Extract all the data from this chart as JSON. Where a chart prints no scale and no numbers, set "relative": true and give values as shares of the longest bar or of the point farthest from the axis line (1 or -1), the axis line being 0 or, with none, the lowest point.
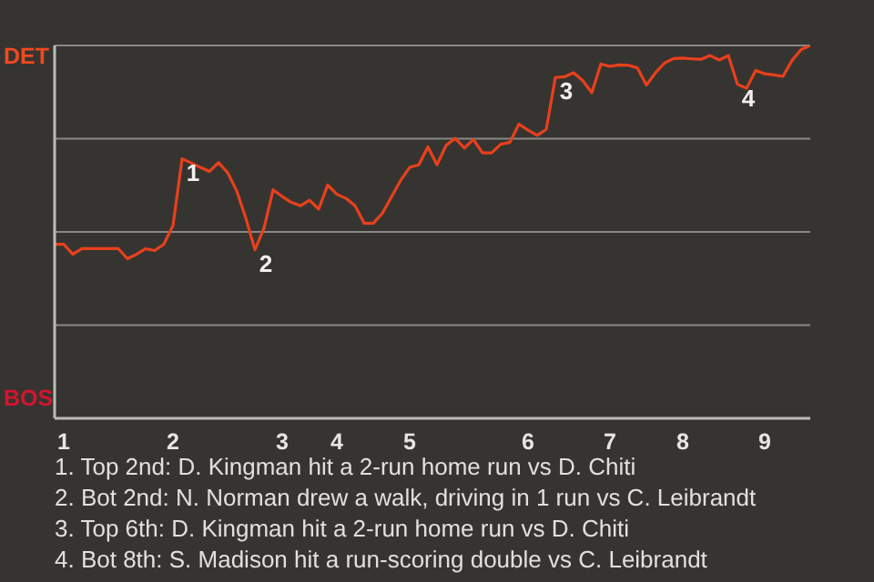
{
  "chart_data": {
    "type": "line",
    "relative": true,
    "categories": [
      null,
      "1",
      null,
      null,
      null,
      null,
      null,
      null,
      null,
      null,
      null,
      null,
      null,
      "2",
      null,
      null,
      null,
      null,
      null,
      null,
      null,
      null,
      null,
      null,
      null,
      "3",
      null,
      null,
      null,
      null,
      null,
      "4",
      null,
      null,
      null,
      null,
      null,
      null,
      null,
      "5",
      null,
      null,
      null,
      null,
      null,
      null,
      null,
      null,
      null,
      null,
      null,
      null,
      "6",
      null,
      null,
      null,
      null,
      null,
      null,
      null,
      null,
      "7",
      null,
      null,
      null,
      null,
      null,
      null,
      null,
      "8",
      null,
      null,
      null,
      null,
      null,
      null,
      null,
      null,
      "9",
      null,
      null,
      null,
      null,
      null
    ],
    "series": [
      {
        "color": "#e8401c",
        "values": [
          0.467,
          0.467,
          0.44,
          0.455,
          0.455,
          0.455,
          0.455,
          0.455,
          0.428,
          0.44,
          0.455,
          0.45,
          0.467,
          0.517,
          0.696,
          0.685,
          0.673,
          0.662,
          0.686,
          0.659,
          0.61,
          0.537,
          0.452,
          0.51,
          0.613,
          0.595,
          0.579,
          0.57,
          0.585,
          0.561,
          0.626,
          0.601,
          0.59,
          0.57,
          0.523,
          0.523,
          0.55,
          0.594,
          0.638,
          0.673,
          0.68,
          0.728,
          0.68,
          0.732,
          0.751,
          0.725,
          0.748,
          0.712,
          0.712,
          0.735,
          0.74,
          0.789,
          0.773,
          0.759,
          0.775,
          0.914,
          0.916,
          0.927,
          0.906,
          0.873,
          0.95,
          0.944,
          0.948,
          0.947,
          0.94,
          0.894,
          0.927,
          0.953,
          0.965,
          0.966,
          0.964,
          0.963,
          0.973,
          0.961,
          0.973,
          0.896,
          0.885,
          0.933,
          0.924,
          0.921,
          0.917,
          0.96,
          0.989,
          1
        ]
      }
    ],
    "grid": "y",
    "marker": "none",
    "line_style": "solid",
    "annotations": [
      {
        "text": "1",
        "y": 0.696
      },
      {
        "text": "2",
        "y": 0.452
      },
      {
        "text": "3",
        "y": 0.914
      },
      {
        "text": "4",
        "y": 0.896
      },
      "DET",
      "BOS",
      "1. Top 2nd: D. Kingman hit a 2-run home run vs D. Chiti",
      "2. Bot 2nd: N. Norman drew a walk, driving in 1 run vs C. Leibrandt",
      "3. Top 6th: D. Kingman hit a 2-run home run vs D. Chiti",
      "4. Bot 8th: S. Madison hit a run-scoring double vs C. Leibrandt"
    ]
  }
}
